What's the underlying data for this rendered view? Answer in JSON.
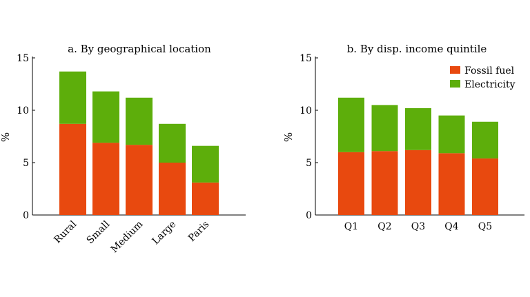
{
  "colors": {
    "fossil": "#E8490F",
    "electricity": "#5DAE0B"
  },
  "chart_data": [
    {
      "type": "bar",
      "stacked": true,
      "title": "a. By geographical location",
      "ylabel": "%",
      "ylim": [
        0,
        15
      ],
      "yticks": [
        0,
        5,
        10,
        15
      ],
      "categories": [
        "Rural",
        "Small",
        "Medium",
        "Large",
        "Paris"
      ],
      "xtick_rotation": "diagonal",
      "series": [
        {
          "name": "Fossil fuel",
          "values": [
            8.7,
            6.9,
            6.7,
            5.0,
            3.1
          ]
        },
        {
          "name": "Electricity",
          "values": [
            5.0,
            4.9,
            4.5,
            3.7,
            3.5
          ]
        }
      ]
    },
    {
      "type": "bar",
      "stacked": true,
      "title": "b. By disp. income quintile",
      "ylabel": "%",
      "ylim": [
        0,
        15
      ],
      "yticks": [
        0,
        5,
        10,
        15
      ],
      "categories": [
        "Q1",
        "Q2",
        "Q3",
        "Q4",
        "Q5"
      ],
      "xtick_rotation": "none",
      "legend": "top-right",
      "series": [
        {
          "name": "Fossil fuel",
          "values": [
            6.0,
            6.1,
            6.2,
            5.9,
            5.4
          ]
        },
        {
          "name": "Electricity",
          "values": [
            5.2,
            4.4,
            4.0,
            3.6,
            3.5
          ]
        }
      ]
    }
  ]
}
